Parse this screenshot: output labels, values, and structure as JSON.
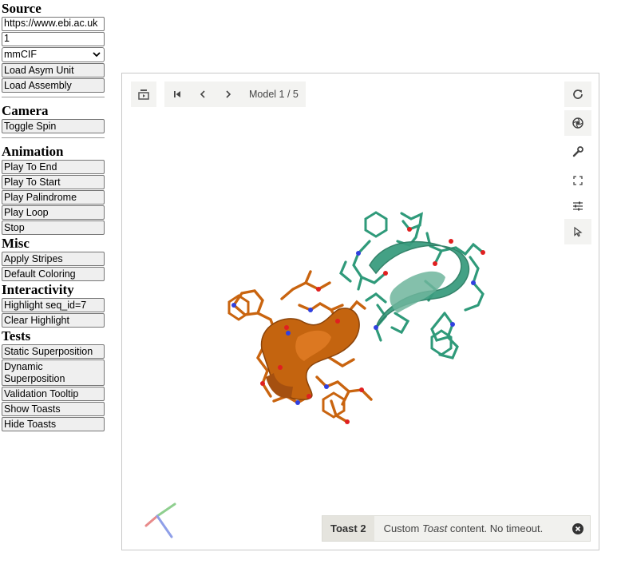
{
  "source": {
    "heading": "Source",
    "url_value": "https://www.ebi.ac.uk",
    "id_value": "1",
    "format_selected": "mmCIF",
    "load_asym_label": "Load Asym Unit",
    "load_assembly_label": "Load Assembly"
  },
  "camera": {
    "heading": "Camera",
    "toggle_spin_label": "Toggle Spin"
  },
  "animation": {
    "heading": "Animation",
    "play_to_end_label": "Play To End",
    "play_to_start_label": "Play To Start",
    "play_palindrome_label": "Play Palindrome",
    "play_loop_label": "Play Loop",
    "stop_label": "Stop"
  },
  "misc": {
    "heading": "Misc",
    "apply_stripes_label": "Apply Stripes",
    "default_coloring_label": "Default Coloring"
  },
  "interactivity": {
    "heading": "Interactivity",
    "highlight_label": "Highlight seq_id=7",
    "clear_highlight_label": "Clear Highlight"
  },
  "tests": {
    "heading": "Tests",
    "static_superposition_label": "Static Superposition",
    "dynamic_superposition_label": "Dynamic Superposition",
    "validation_tooltip_label": "Validation Tooltip",
    "show_toasts_label": "Show Toasts",
    "hide_toasts_label": "Hide Toasts"
  },
  "viewer": {
    "model_label": "Model 1 / 5",
    "toolbar_icons": [
      "animation-icon",
      "first-model-icon",
      "previous-model-icon",
      "next-model-icon"
    ],
    "side_icons": [
      "reset-camera-icon",
      "screenshot-icon",
      "controls-icon",
      "expand-icon",
      "settings-icon",
      "selection-mode-icon"
    ]
  },
  "toast": {
    "title": "Toast 2",
    "message_before": "Custom ",
    "message_em": "Toast",
    "message_after": " content. No timeout."
  },
  "colors": {
    "chain_a": "#c9640f",
    "chain_b": "#2f9a7a",
    "nitrogen": "#3040e0",
    "oxygen": "#e02020"
  }
}
